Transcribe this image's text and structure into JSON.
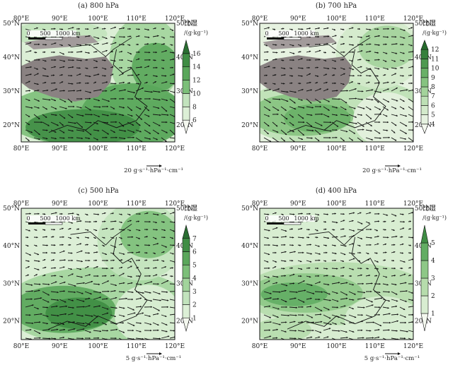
{
  "panels": [
    {
      "title": "(a) 800 hPa",
      "colorbar_ticks": [
        "6",
        "8",
        "10",
        "12",
        "14",
        "16"
      ],
      "colorbar_colors": [
        "#f4f8ef",
        "#dcefd6",
        "#c2e3bd",
        "#a2d49c",
        "#7cbf79",
        "#5aa75b",
        "#3f8d44",
        "#2a6e32"
      ],
      "reference_vector": "20 g·s⁻¹·hPa⁻¹·cm⁻¹",
      "plateau": true,
      "moisture": "high"
    },
    {
      "title": "(b) 700 hPa",
      "colorbar_ticks": [
        "4",
        "5",
        "6",
        "7",
        "8",
        "9",
        "10",
        "11",
        "12"
      ],
      "colorbar_colors": [
        "#f4f8ef",
        "#e6f2e0",
        "#d3eacb",
        "#bde0b5",
        "#a3d39b",
        "#86c380",
        "#69b067",
        "#4e9a50",
        "#36803c",
        "#256a2c"
      ],
      "reference_vector": "20 g·s⁻¹·hPa⁻¹·cm⁻¹",
      "plateau": true,
      "moisture": "medium"
    },
    {
      "title": "(c) 500 hPa",
      "colorbar_ticks": [
        "1",
        "2",
        "3",
        "4",
        "5",
        "6",
        "7"
      ],
      "colorbar_colors": [
        "#f4f8ef",
        "#dcefd6",
        "#c2e3bd",
        "#a2d49c",
        "#7cbf79",
        "#5aa75b",
        "#3f8d44",
        "#2a6e32"
      ],
      "reference_vector": "5 g·s⁻¹·hPa⁻¹·cm⁻¹",
      "plateau": false,
      "moisture": "medium"
    },
    {
      "title": "(d) 400 hPa",
      "colorbar_ticks": [
        "1",
        "2",
        "3",
        "4",
        "5"
      ],
      "colorbar_colors": [
        "#f4f8ef",
        "#d8edd1",
        "#b6dcac",
        "#8ec887",
        "#62ad63",
        "#3f8d44"
      ],
      "reference_vector": "5 g·s⁻¹·hPa⁻¹·cm⁻¹",
      "plateau": false,
      "moisture": "low"
    }
  ],
  "lon_ticks": [
    "80°E",
    "90°E",
    "100°E",
    "110°E",
    "120°E"
  ],
  "lat_ticks": [
    "50°N",
    "40°N",
    "30°N",
    "20°N"
  ],
  "colorbar_title": "比湿",
  "colorbar_unit": "/(g·kg⁻¹)",
  "scalebar_labels": [
    "0",
    "500",
    "1000 km"
  ],
  "colors": {
    "plateau": "#8a8282",
    "coast": "#111111",
    "arrow": "#111111"
  }
}
